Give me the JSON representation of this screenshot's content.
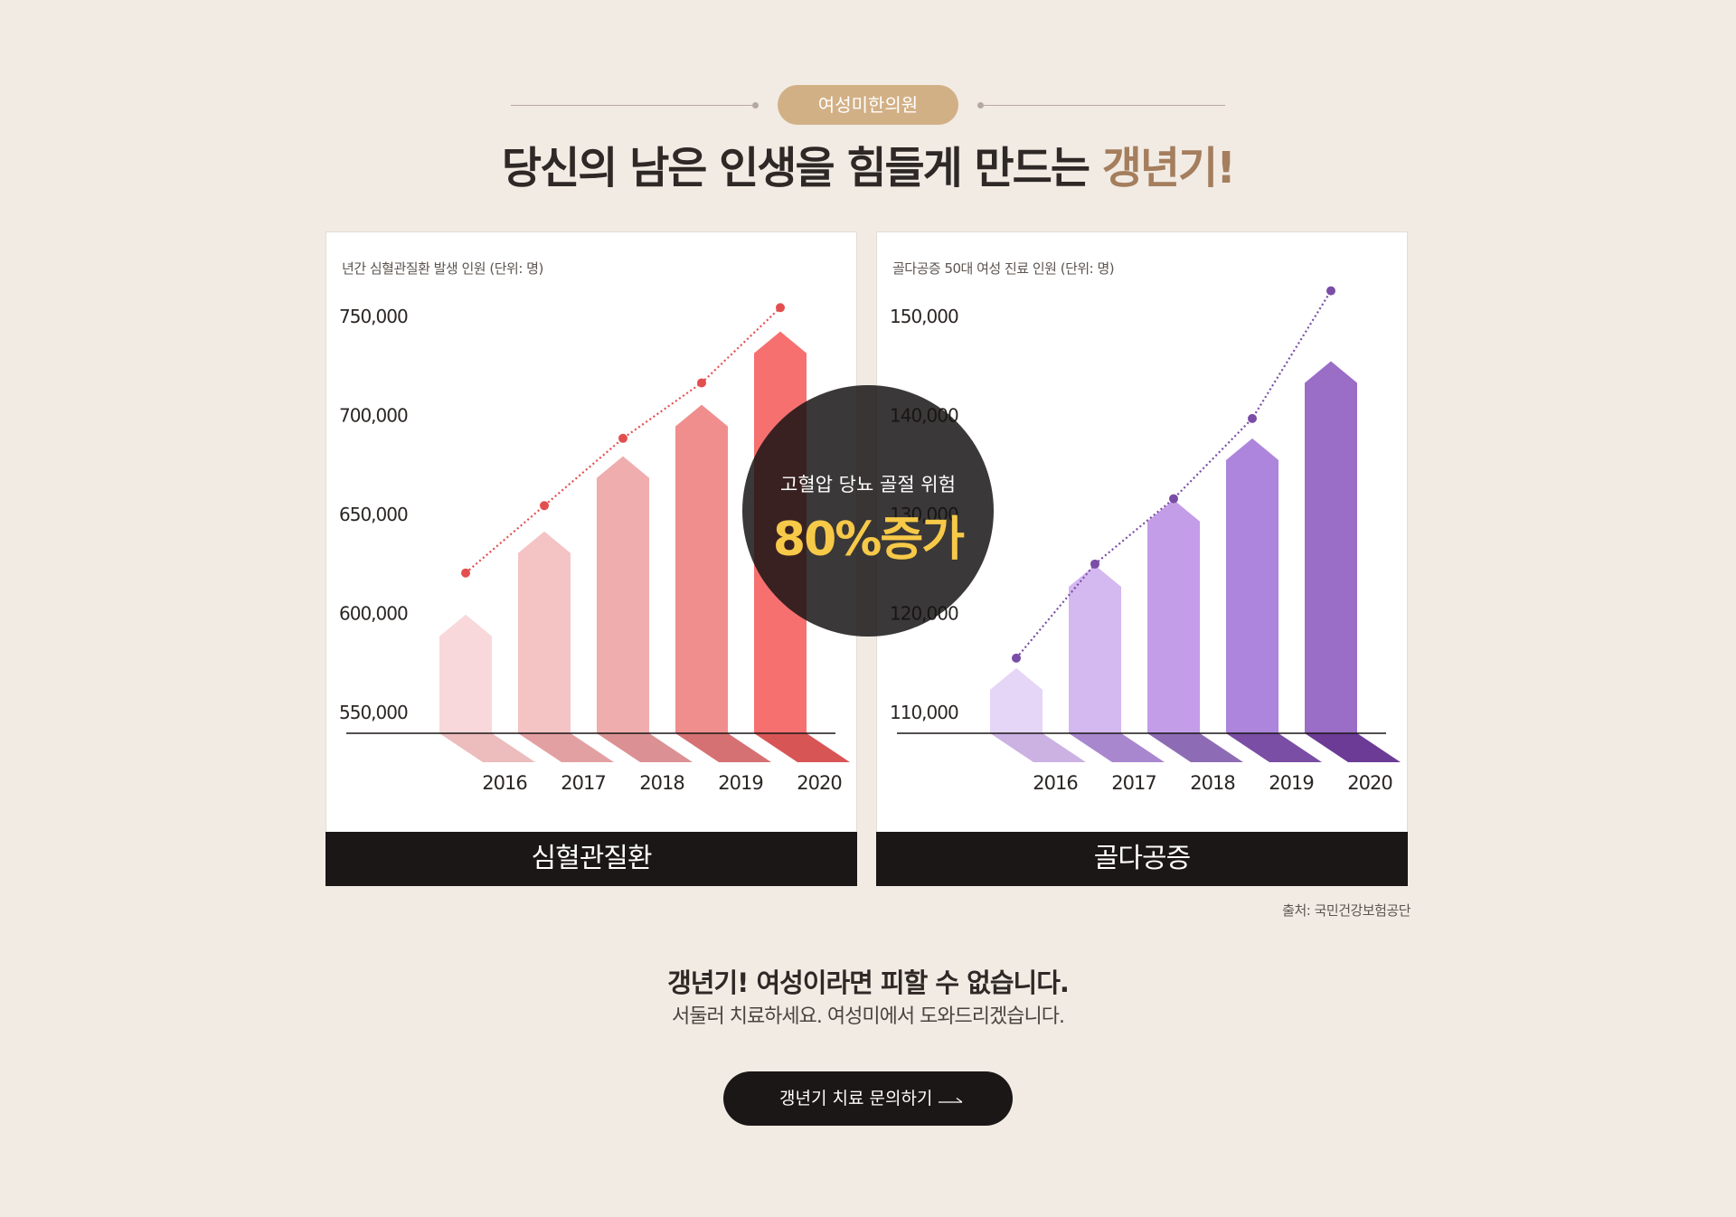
{
  "header": {
    "badge": "여성미한의원",
    "headline_main": "당신의 남은 인생을 힘들게 만드는 ",
    "headline_accent": "갱년기!"
  },
  "overlay": {
    "line1": "고혈압 당뇨 골절 위험",
    "line2": "80%증가"
  },
  "source": "출처: 국민건강보험공단",
  "bottom": {
    "title": "갱년기! 여성이라면 피할 수 없습니다.",
    "subtitle": "서둘러 치료하세요. 여성미에서 도와드리겠습니다."
  },
  "cta": {
    "label": "갱년기 치료 문의하기",
    "icon": "arrow-right-icon"
  },
  "chart_data": [
    {
      "type": "bar",
      "title": "년간 심혈관질환 발생 인원 (단위: 명)",
      "footer": "심혈관질환",
      "categories": [
        "2016",
        "2017",
        "2018",
        "2019",
        "2020"
      ],
      "values": [
        588000,
        630000,
        668000,
        694000,
        731000
      ],
      "line_values": [
        620000,
        654000,
        688000,
        716000,
        754000
      ],
      "ylim": [
        550000,
        750000
      ],
      "yticks": [
        550000,
        600000,
        650000,
        700000,
        750000
      ],
      "ytick_labels": [
        "550,000",
        "600,000",
        "650,000",
        "700,000",
        "750,000"
      ],
      "colors": [
        "#f8d8da",
        "#f4c3c4",
        "#f0adae",
        "#f08e8e",
        "#f77070"
      ],
      "shadow_colors": [
        "#edbcbd",
        "#e3a0a2",
        "#db9193",
        "#d67173",
        "#d85556"
      ],
      "line_color": "#e34f4f"
    },
    {
      "type": "bar",
      "title": "골다공증 50대 여성 진료 인원 (단위: 명)",
      "footer": "골다공증",
      "categories": [
        "2016",
        "2017",
        "2018",
        "2019",
        "2020"
      ],
      "values": [
        112200,
        122600,
        129200,
        135400,
        143200
      ],
      "line_values": [
        115400,
        124900,
        131500,
        139600,
        152500
      ],
      "ylim": [
        110000,
        150000
      ],
      "yticks": [
        110000,
        120000,
        130000,
        140000,
        150000
      ],
      "ytick_labels": [
        "110,000",
        "120,000",
        "130,000",
        "140,000",
        "150,000"
      ],
      "colors": [
        "#e5d5f7",
        "#d4b8f0",
        "#c49de9",
        "#ad85dc",
        "#9a6dc6"
      ],
      "shadow_colors": [
        "#cbb2e3",
        "#a987cf",
        "#8e6cb5",
        "#7a4ea4",
        "#6b3b95"
      ],
      "line_color": "#7a4da6"
    }
  ]
}
